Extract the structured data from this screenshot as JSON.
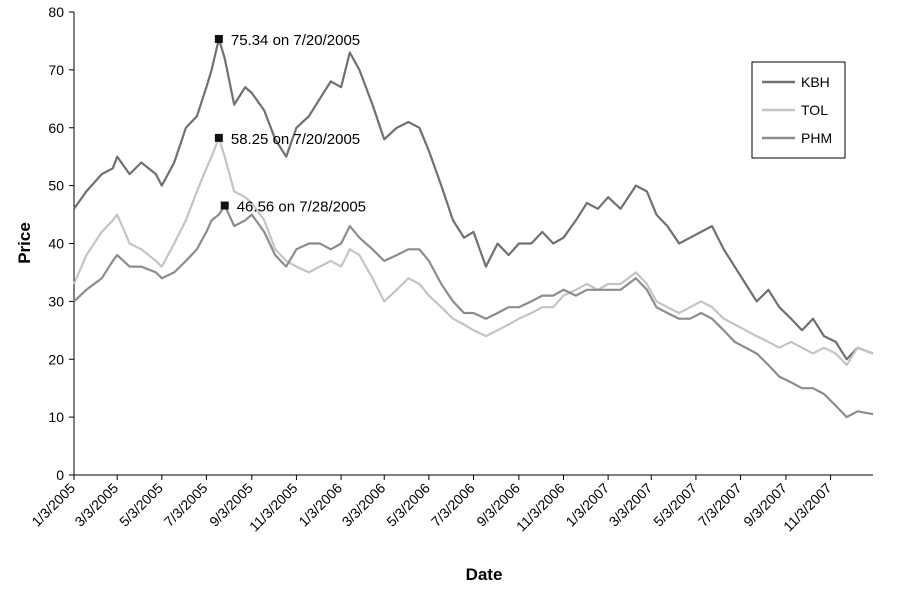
{
  "chart_data": {
    "type": "line",
    "xlabel": "Date",
    "ylabel": "Price",
    "ylim": [
      0,
      80
    ],
    "yticks": [
      "0",
      "10",
      "20",
      "30",
      "40",
      "50",
      "60",
      "70",
      "80"
    ],
    "xrange": [
      "2005-01-03",
      "2007-12-31"
    ],
    "xtick_labels": [
      "1/3/2005",
      "3/3/2005",
      "5/3/2005",
      "7/3/2005",
      "9/3/2005",
      "11/3/2005",
      "1/3/2006",
      "3/3/2006",
      "5/3/2006",
      "7/3/2006",
      "9/3/2006",
      "11/3/2006",
      "1/3/2007",
      "3/3/2007",
      "5/3/2007",
      "7/3/2007",
      "9/3/2007",
      "11/3/2007"
    ],
    "legend_position": "right",
    "grid": false,
    "series": [
      {
        "name": "KBH",
        "color": "#707070",
        "points": [
          [
            "2005-01-03",
            46
          ],
          [
            "2005-01-20",
            49
          ],
          [
            "2005-02-10",
            52
          ],
          [
            "2005-02-25",
            53
          ],
          [
            "2005-03-03",
            55
          ],
          [
            "2005-03-20",
            52
          ],
          [
            "2005-04-05",
            54
          ],
          [
            "2005-04-25",
            52
          ],
          [
            "2005-05-03",
            50
          ],
          [
            "2005-05-20",
            54
          ],
          [
            "2005-06-05",
            60
          ],
          [
            "2005-06-20",
            62
          ],
          [
            "2005-07-03",
            67
          ],
          [
            "2005-07-10",
            70
          ],
          [
            "2005-07-20",
            75.34
          ],
          [
            "2005-07-28",
            72
          ],
          [
            "2005-08-10",
            64
          ],
          [
            "2005-08-25",
            67
          ],
          [
            "2005-09-03",
            66
          ],
          [
            "2005-09-20",
            63
          ],
          [
            "2005-10-05",
            58
          ],
          [
            "2005-10-20",
            55
          ],
          [
            "2005-11-03",
            60
          ],
          [
            "2005-11-20",
            62
          ],
          [
            "2005-12-05",
            65
          ],
          [
            "2005-12-20",
            68
          ],
          [
            "2006-01-03",
            67
          ],
          [
            "2006-01-15",
            73
          ],
          [
            "2006-01-28",
            70
          ],
          [
            "2006-02-15",
            64
          ],
          [
            "2006-03-03",
            58
          ],
          [
            "2006-03-20",
            60
          ],
          [
            "2006-04-05",
            61
          ],
          [
            "2006-04-20",
            60
          ],
          [
            "2006-05-03",
            56
          ],
          [
            "2006-05-20",
            50
          ],
          [
            "2006-06-05",
            44
          ],
          [
            "2006-06-20",
            41
          ],
          [
            "2006-07-03",
            42
          ],
          [
            "2006-07-20",
            36
          ],
          [
            "2006-08-05",
            40
          ],
          [
            "2006-08-20",
            38
          ],
          [
            "2006-09-03",
            40
          ],
          [
            "2006-09-20",
            40
          ],
          [
            "2006-10-05",
            42
          ],
          [
            "2006-10-20",
            40
          ],
          [
            "2006-11-03",
            41
          ],
          [
            "2006-11-20",
            44
          ],
          [
            "2006-12-05",
            47
          ],
          [
            "2006-12-20",
            46
          ],
          [
            "2007-01-03",
            48
          ],
          [
            "2007-01-20",
            46
          ],
          [
            "2007-02-10",
            50
          ],
          [
            "2007-02-25",
            49
          ],
          [
            "2007-03-10",
            45
          ],
          [
            "2007-03-25",
            43
          ],
          [
            "2007-04-10",
            40
          ],
          [
            "2007-04-25",
            41
          ],
          [
            "2007-05-10",
            42
          ],
          [
            "2007-05-25",
            43
          ],
          [
            "2007-06-10",
            39
          ],
          [
            "2007-06-25",
            36
          ],
          [
            "2007-07-10",
            33
          ],
          [
            "2007-07-25",
            30
          ],
          [
            "2007-08-10",
            32
          ],
          [
            "2007-08-25",
            29
          ],
          [
            "2007-09-10",
            27
          ],
          [
            "2007-09-25",
            25
          ],
          [
            "2007-10-10",
            27
          ],
          [
            "2007-10-25",
            24
          ],
          [
            "2007-11-10",
            23
          ],
          [
            "2007-11-25",
            20
          ],
          [
            "2007-12-10",
            22
          ],
          [
            "2007-12-31",
            21
          ]
        ]
      },
      {
        "name": "TOL",
        "color": "#c4c4c4",
        "points": [
          [
            "2005-01-03",
            33
          ],
          [
            "2005-01-20",
            38
          ],
          [
            "2005-02-10",
            42
          ],
          [
            "2005-02-25",
            44
          ],
          [
            "2005-03-03",
            45
          ],
          [
            "2005-03-20",
            40
          ],
          [
            "2005-04-05",
            39
          ],
          [
            "2005-04-25",
            37
          ],
          [
            "2005-05-03",
            36
          ],
          [
            "2005-05-20",
            40
          ],
          [
            "2005-06-05",
            44
          ],
          [
            "2005-06-20",
            49
          ],
          [
            "2005-07-03",
            53
          ],
          [
            "2005-07-10",
            55
          ],
          [
            "2005-07-20",
            58.25
          ],
          [
            "2005-07-28",
            55
          ],
          [
            "2005-08-10",
            49
          ],
          [
            "2005-08-25",
            48
          ],
          [
            "2005-09-03",
            47
          ],
          [
            "2005-09-20",
            44
          ],
          [
            "2005-10-05",
            39
          ],
          [
            "2005-10-20",
            37
          ],
          [
            "2005-11-03",
            36
          ],
          [
            "2005-11-20",
            35
          ],
          [
            "2005-12-05",
            36
          ],
          [
            "2005-12-20",
            37
          ],
          [
            "2006-01-03",
            36
          ],
          [
            "2006-01-15",
            39
          ],
          [
            "2006-01-28",
            38
          ],
          [
            "2006-02-15",
            34
          ],
          [
            "2006-03-03",
            30
          ],
          [
            "2006-03-20",
            32
          ],
          [
            "2006-04-05",
            34
          ],
          [
            "2006-04-20",
            33
          ],
          [
            "2006-05-03",
            31
          ],
          [
            "2006-05-20",
            29
          ],
          [
            "2006-06-05",
            27
          ],
          [
            "2006-06-20",
            26
          ],
          [
            "2006-07-03",
            25
          ],
          [
            "2006-07-20",
            24
          ],
          [
            "2006-08-05",
            25
          ],
          [
            "2006-08-20",
            26
          ],
          [
            "2006-09-03",
            27
          ],
          [
            "2006-09-20",
            28
          ],
          [
            "2006-10-05",
            29
          ],
          [
            "2006-10-20",
            29
          ],
          [
            "2006-11-03",
            31
          ],
          [
            "2006-11-20",
            32
          ],
          [
            "2006-12-05",
            33
          ],
          [
            "2006-12-20",
            32
          ],
          [
            "2007-01-03",
            33
          ],
          [
            "2007-01-20",
            33
          ],
          [
            "2007-02-10",
            35
          ],
          [
            "2007-02-25",
            33
          ],
          [
            "2007-03-10",
            30
          ],
          [
            "2007-03-25",
            29
          ],
          [
            "2007-04-10",
            28
          ],
          [
            "2007-04-25",
            29
          ],
          [
            "2007-05-10",
            30
          ],
          [
            "2007-05-25",
            29
          ],
          [
            "2007-06-10",
            27
          ],
          [
            "2007-06-25",
            26
          ],
          [
            "2007-07-10",
            25
          ],
          [
            "2007-07-25",
            24
          ],
          [
            "2007-08-10",
            23
          ],
          [
            "2007-08-25",
            22
          ],
          [
            "2007-09-10",
            23
          ],
          [
            "2007-09-25",
            22
          ],
          [
            "2007-10-10",
            21
          ],
          [
            "2007-10-25",
            22
          ],
          [
            "2007-11-10",
            21
          ],
          [
            "2007-11-25",
            19
          ],
          [
            "2007-12-10",
            22
          ],
          [
            "2007-12-31",
            21
          ]
        ]
      },
      {
        "name": "PHM",
        "color": "#8c8c8c",
        "points": [
          [
            "2005-01-03",
            30
          ],
          [
            "2005-01-20",
            32
          ],
          [
            "2005-02-10",
            34
          ],
          [
            "2005-02-25",
            37
          ],
          [
            "2005-03-03",
            38
          ],
          [
            "2005-03-20",
            36
          ],
          [
            "2005-04-05",
            36
          ],
          [
            "2005-04-25",
            35
          ],
          [
            "2005-05-03",
            34
          ],
          [
            "2005-05-20",
            35
          ],
          [
            "2005-06-05",
            37
          ],
          [
            "2005-06-20",
            39
          ],
          [
            "2005-07-03",
            42
          ],
          [
            "2005-07-10",
            44
          ],
          [
            "2005-07-20",
            45
          ],
          [
            "2005-07-28",
            46.56
          ],
          [
            "2005-08-10",
            43
          ],
          [
            "2005-08-25",
            44
          ],
          [
            "2005-09-03",
            45
          ],
          [
            "2005-09-20",
            42
          ],
          [
            "2005-10-05",
            38
          ],
          [
            "2005-10-20",
            36
          ],
          [
            "2005-11-03",
            39
          ],
          [
            "2005-11-20",
            40
          ],
          [
            "2005-12-05",
            40
          ],
          [
            "2005-12-20",
            39
          ],
          [
            "2006-01-03",
            40
          ],
          [
            "2006-01-15",
            43
          ],
          [
            "2006-01-28",
            41
          ],
          [
            "2006-02-15",
            39
          ],
          [
            "2006-03-03",
            37
          ],
          [
            "2006-03-20",
            38
          ],
          [
            "2006-04-05",
            39
          ],
          [
            "2006-04-20",
            39
          ],
          [
            "2006-05-03",
            37
          ],
          [
            "2006-05-20",
            33
          ],
          [
            "2006-06-05",
            30
          ],
          [
            "2006-06-20",
            28
          ],
          [
            "2006-07-03",
            28
          ],
          [
            "2006-07-20",
            27
          ],
          [
            "2006-08-05",
            28
          ],
          [
            "2006-08-20",
            29
          ],
          [
            "2006-09-03",
            29
          ],
          [
            "2006-09-20",
            30
          ],
          [
            "2006-10-05",
            31
          ],
          [
            "2006-10-20",
            31
          ],
          [
            "2006-11-03",
            32
          ],
          [
            "2006-11-20",
            31
          ],
          [
            "2006-12-05",
            32
          ],
          [
            "2006-12-20",
            32
          ],
          [
            "2007-01-03",
            32
          ],
          [
            "2007-01-20",
            32
          ],
          [
            "2007-02-10",
            34
          ],
          [
            "2007-02-25",
            32
          ],
          [
            "2007-03-10",
            29
          ],
          [
            "2007-03-25",
            28
          ],
          [
            "2007-04-10",
            27
          ],
          [
            "2007-04-25",
            27
          ],
          [
            "2007-05-10",
            28
          ],
          [
            "2007-05-25",
            27
          ],
          [
            "2007-06-10",
            25
          ],
          [
            "2007-06-25",
            23
          ],
          [
            "2007-07-10",
            22
          ],
          [
            "2007-07-25",
            21
          ],
          [
            "2007-08-10",
            19
          ],
          [
            "2007-08-25",
            17
          ],
          [
            "2007-09-10",
            16
          ],
          [
            "2007-09-25",
            15
          ],
          [
            "2007-10-10",
            15
          ],
          [
            "2007-10-25",
            14
          ],
          [
            "2007-11-10",
            12
          ],
          [
            "2007-11-25",
            10
          ],
          [
            "2007-12-10",
            11
          ],
          [
            "2007-12-31",
            10.5
          ]
        ]
      }
    ],
    "annotations": [
      {
        "series": "KBH",
        "date": "2005-07-20",
        "value": 75.34,
        "text": "75.34 on 7/20/2005"
      },
      {
        "series": "TOL",
        "date": "2005-07-20",
        "value": 58.25,
        "text": "58.25 on 7/20/2005"
      },
      {
        "series": "PHM",
        "date": "2005-07-28",
        "value": 46.56,
        "text": "46.56 on 7/28/2005"
      }
    ]
  }
}
